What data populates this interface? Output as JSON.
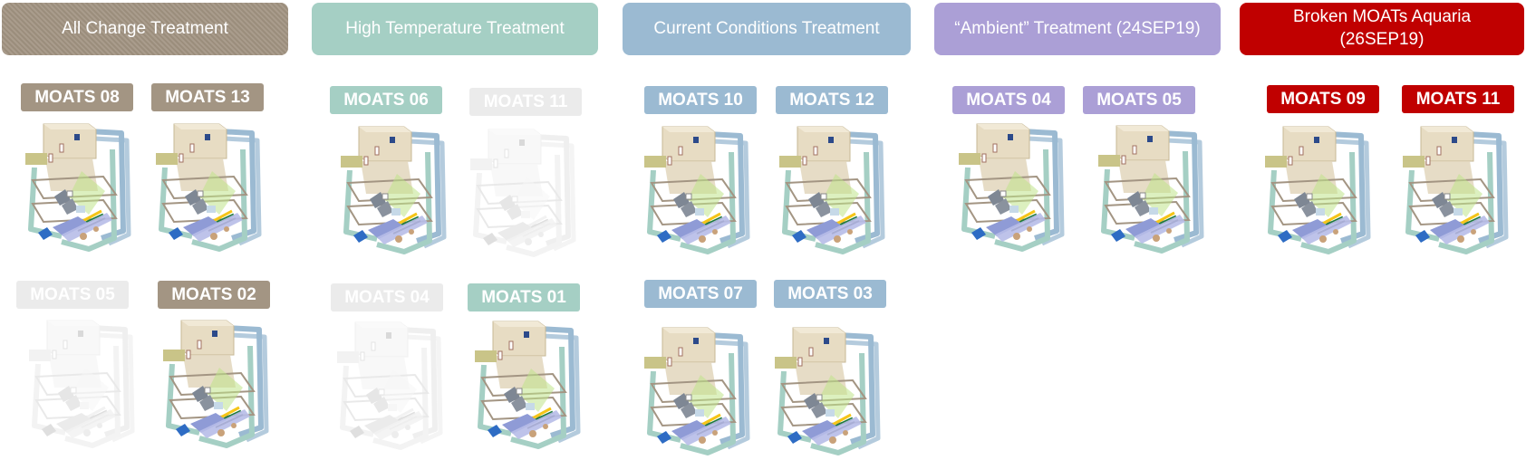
{
  "colors": {
    "all_change": "#a39583",
    "high_temperature": "#a5cfc4",
    "current_conditions": "#9bbad2",
    "ambient": "#ab9fd6",
    "broken": "#c00000",
    "inactive": "#ebebeb"
  },
  "treatments": [
    {
      "id": "all_change",
      "label": "All Change Treatment"
    },
    {
      "id": "high_temperature",
      "label": "High Temperature Treatment"
    },
    {
      "id": "current_conditions",
      "label": "Current Conditions Treatment"
    },
    {
      "id": "ambient",
      "label": "“Ambient” Treatment (24SEP19)"
    },
    {
      "id": "broken",
      "label": "Broken MOATs Aquaria\n(26SEP19)"
    }
  ],
  "units": [
    {
      "label": "MOATS 08",
      "group": "all_change",
      "active": true
    },
    {
      "label": "MOATS 13",
      "group": "all_change",
      "active": true
    },
    {
      "label": "MOATS 05",
      "group": "all_change",
      "active": false
    },
    {
      "label": "MOATS 02",
      "group": "all_change",
      "active": true
    },
    {
      "label": "MOATS 06",
      "group": "high_temperature",
      "active": true
    },
    {
      "label": "MOATS 11",
      "group": "high_temperature",
      "active": false
    },
    {
      "label": "MOATS 04",
      "group": "high_temperature",
      "active": false
    },
    {
      "label": "MOATS 01",
      "group": "high_temperature",
      "active": true
    },
    {
      "label": "MOATS 10",
      "group": "current_conditions",
      "active": true
    },
    {
      "label": "MOATS 12",
      "group": "current_conditions",
      "active": true
    },
    {
      "label": "MOATS 07",
      "group": "current_conditions",
      "active": true
    },
    {
      "label": "MOATS 03",
      "group": "current_conditions",
      "active": true
    },
    {
      "label": "MOATS 04",
      "group": "ambient",
      "active": true
    },
    {
      "label": "MOATS 05",
      "group": "ambient",
      "active": true
    },
    {
      "label": "MOATS 09",
      "group": "broken",
      "active": true
    },
    {
      "label": "MOATS 11",
      "group": "broken",
      "active": true
    }
  ]
}
